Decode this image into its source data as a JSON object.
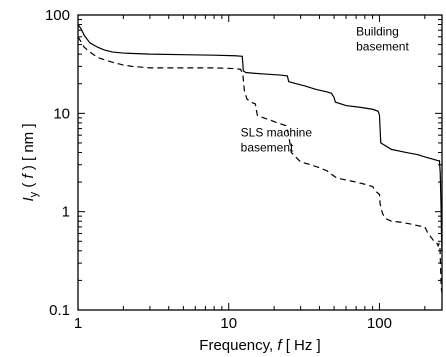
{
  "chart_data": {
    "type": "line",
    "title": "",
    "xlabel_parts": [
      "Frequency, ",
      "f",
      " [ Hz ]"
    ],
    "ylabel_parts": [
      "I",
      "y",
      " ( ",
      "f",
      " ) [ nm ]"
    ],
    "xscale": "log",
    "yscale": "log",
    "xlim": [
      1,
      260
    ],
    "ylim": [
      0.1,
      100
    ],
    "xticks": [
      1,
      10,
      100
    ],
    "xtick_labels": [
      "1",
      "10",
      "100"
    ],
    "yticks": [
      0.1,
      1,
      10,
      100
    ],
    "ytick_labels": [
      "0.1",
      "1",
      "10",
      "100"
    ],
    "grid": false,
    "legend": "none",
    "annotations": [
      {
        "id": "building",
        "lines": [
          "Building",
          "basement"
        ],
        "x": 70,
        "y": 62
      },
      {
        "id": "sls",
        "lines": [
          "SLS machine",
          "basement"
        ],
        "x": 12,
        "y": 5.8
      }
    ],
    "series": [
      {
        "style": "solid",
        "color": "#000000",
        "x": [
          1,
          1.05,
          1.1,
          1.2,
          1.35,
          1.5,
          1.7,
          2,
          3,
          5,
          8,
          11,
          12.3,
          12.5,
          13,
          15,
          18,
          22,
          24.5,
          25,
          28,
          32,
          38,
          45,
          48,
          50,
          51,
          60,
          75,
          90,
          98,
          100,
          102,
          120,
          150,
          180,
          200,
          230,
          245,
          250,
          253,
          256,
          258,
          260
        ],
        "y": [
          80,
          72,
          62,
          52,
          47,
          44,
          42,
          41,
          40,
          39.5,
          39,
          38.5,
          38,
          27,
          26,
          25.5,
          25,
          24.5,
          24,
          21,
          20,
          19,
          17.5,
          16.5,
          16,
          14.5,
          13,
          12,
          11.5,
          11,
          10.5,
          9.6,
          5,
          4.3,
          4,
          3.8,
          3.6,
          3.4,
          3.3,
          3.3,
          2.5,
          1.2,
          0.6,
          0.4
        ]
      },
      {
        "style": "dashed",
        "color": "#000000",
        "x": [
          1,
          1.05,
          1.1,
          1.2,
          1.35,
          1.5,
          1.7,
          2,
          2.3,
          3,
          5,
          8,
          11,
          12,
          12.4,
          12.7,
          13.2,
          14,
          15,
          15.5,
          17,
          19,
          21,
          24,
          25,
          26,
          30,
          35,
          40,
          45,
          48,
          50,
          52,
          60,
          70,
          80,
          90,
          95,
          100,
          101,
          105,
          110,
          120,
          140,
          160,
          180,
          200,
          210,
          220,
          230,
          240,
          245,
          248,
          250,
          252,
          254,
          256,
          258,
          260
        ],
        "y": [
          60,
          53,
          47,
          42,
          37,
          35,
          33,
          31,
          30,
          29,
          29,
          29,
          28.5,
          28,
          25,
          17,
          14,
          13,
          12.5,
          9.5,
          9,
          8.5,
          8,
          7.5,
          6,
          4,
          3.2,
          3,
          2.8,
          2.6,
          2.4,
          2.3,
          2.2,
          2.1,
          2,
          1.9,
          1.8,
          1.6,
          1.5,
          1.2,
          0.95,
          0.85,
          0.8,
          0.78,
          0.75,
          0.72,
          0.7,
          0.6,
          0.55,
          0.5,
          0.48,
          0.45,
          0.47,
          0.44,
          0.44,
          0.3,
          0.2,
          0.16,
          0.15
        ]
      }
    ]
  }
}
